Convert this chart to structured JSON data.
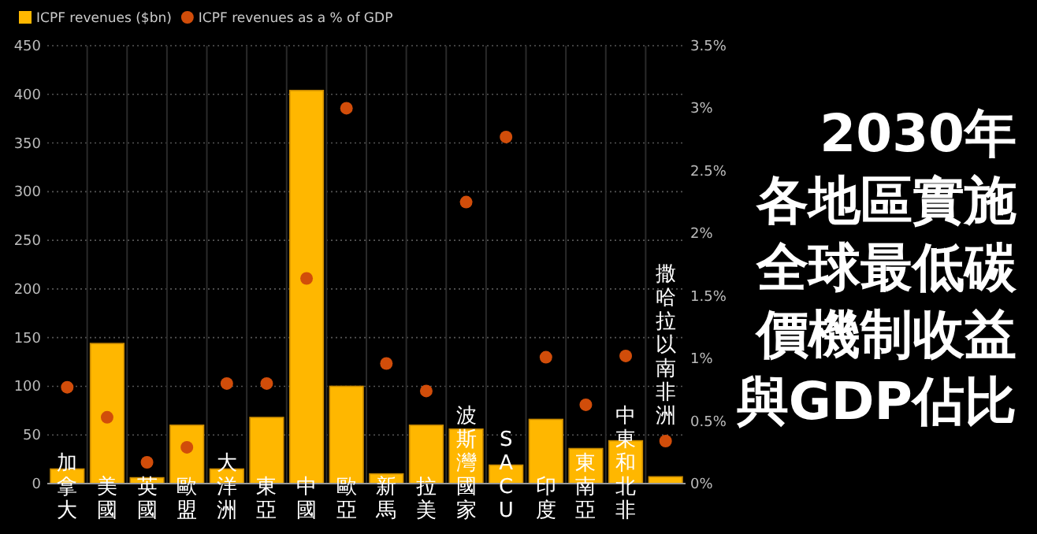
{
  "chart_data": {
    "type": "bar",
    "title": "2030年",
    "subtitle": "各地區實施全球最低碳價機制收益與GDP佔比",
    "categories": [
      "加拿大",
      "美國",
      "英國",
      "歐盟",
      "大洋洲",
      "東亞",
      "中國",
      "歐亞",
      "新馬",
      "拉美",
      "波斯灣國家",
      "SACU",
      "印度",
      "東南亞",
      "中東和北非",
      "撒哈拉以南非洲"
    ],
    "series": [
      {
        "name": "ICPF revenues ($bn)",
        "type": "bar",
        "color": "#ffb700",
        "values": [
          15,
          144,
          6,
          60,
          15,
          68,
          404,
          100,
          10,
          60,
          56,
          19,
          66,
          36,
          44,
          7
        ]
      },
      {
        "name": "ICPF revenues as a % of GDP",
        "type": "scatter",
        "axis": "y2",
        "color": "#d14d0a",
        "values": [
          0.77,
          0.53,
          0.17,
          0.29,
          0.8,
          0.8,
          1.64,
          3.0,
          0.96,
          0.74,
          2.25,
          2.77,
          1.01,
          0.63,
          1.02,
          0.34
        ]
      }
    ],
    "ylim": [
      0,
      450
    ],
    "yticks": [
      0,
      50,
      100,
      150,
      200,
      250,
      300,
      350,
      400,
      450
    ],
    "y2lim": [
      0,
      3.5
    ],
    "y2ticks": [
      {
        "value": 0,
        "label": "0%"
      },
      {
        "value": 0.5,
        "label": "0.5%"
      },
      {
        "value": 1,
        "label": "1%"
      },
      {
        "value": 1.5,
        "label": "1.5%"
      },
      {
        "value": 2,
        "label": "2%"
      },
      {
        "value": 2.5,
        "label": "2.5%"
      },
      {
        "value": 3,
        "label": "3%"
      },
      {
        "value": 3.5,
        "label": "3.5%"
      }
    ],
    "grid": true,
    "legend": "top left",
    "marker": "circle"
  }
}
